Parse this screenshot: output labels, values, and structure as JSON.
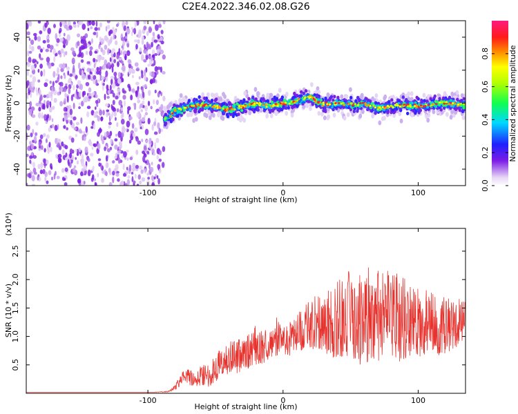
{
  "title": "C2E4.2022.346.02.08.G26",
  "chart_data": [
    {
      "type": "heatmap",
      "xlabel": "Height of straight line (km)",
      "ylabel": "Frequency (Hz)",
      "xlim": [
        -190,
        135
      ],
      "ylim": [
        -50,
        50
      ],
      "xticks": [
        -100,
        0,
        100
      ],
      "yticks": [
        -40,
        -20,
        0,
        20,
        40
      ],
      "colorbar": {
        "label": "Normalized spectral amplitude",
        "range": [
          0,
          1
        ],
        "ticks": [
          "0.0",
          "0.2",
          "0.4",
          "0.6",
          "0.8"
        ]
      },
      "noise_region_x": [
        -190,
        -88
      ],
      "ridge": [
        [
          -88,
          -10
        ],
        [
          -80,
          -5
        ],
        [
          -70,
          -2
        ],
        [
          -60,
          -1
        ],
        [
          -50,
          -2
        ],
        [
          -40,
          -4
        ],
        [
          -30,
          -2
        ],
        [
          -20,
          0
        ],
        [
          -10,
          -2
        ],
        [
          0,
          0
        ],
        [
          10,
          1
        ],
        [
          20,
          4
        ],
        [
          30,
          -1
        ],
        [
          40,
          0
        ],
        [
          50,
          -1
        ],
        [
          60,
          0
        ],
        [
          70,
          -3
        ],
        [
          80,
          -2
        ],
        [
          90,
          -1
        ],
        [
          100,
          -2
        ],
        [
          110,
          -1
        ],
        [
          120,
          0
        ],
        [
          130,
          -1
        ]
      ]
    },
    {
      "type": "line",
      "xlabel": "Height of straight line (km)",
      "ylabel": "SNR (10 * v/v)",
      "yunit": "(x10⁴)",
      "xlim": [
        -190,
        135
      ],
      "ylim": [
        0,
        2.9
      ],
      "xticks": [
        -100,
        0,
        100
      ],
      "yticks": [
        "0.5",
        "1.0",
        "1.5",
        "2.0",
        "2.5"
      ],
      "color": "#e8322d",
      "series": [
        {
          "x": [
            -190,
            -170,
            -150,
            -130,
            -110,
            -95,
            -85,
            -80,
            -75,
            -70,
            -65,
            -60,
            -55,
            -50,
            -45,
            -40,
            -35,
            -30,
            -25,
            -20,
            -15,
            -10,
            -5,
            0,
            5,
            10,
            15,
            20,
            25,
            30,
            35,
            40,
            45,
            50,
            55,
            60,
            65,
            70,
            75,
            80,
            85,
            90,
            95,
            100,
            105,
            110,
            115,
            120,
            125,
            130,
            135
          ],
          "y": [
            0.02,
            0.02,
            0.02,
            0.02,
            0.02,
            0.02,
            0.03,
            0.1,
            0.25,
            0.3,
            0.2,
            0.35,
            0.3,
            0.45,
            0.55,
            0.6,
            0.7,
            0.65,
            0.75,
            0.85,
            0.8,
            0.9,
            1.0,
            0.95,
            0.95,
            1.05,
            1.15,
            1.2,
            1.25,
            1.3,
            1.2,
            1.3,
            1.35,
            1.4,
            1.3,
            1.35,
            1.4,
            1.35,
            1.3,
            1.4,
            1.35,
            1.3,
            1.3,
            1.2,
            1.25,
            1.25,
            1.15,
            1.2,
            1.2,
            1.25,
            1.2
          ],
          "spread": [
            0,
            0,
            0,
            0,
            0,
            0,
            0.01,
            0.05,
            0.12,
            0.15,
            0.12,
            0.2,
            0.2,
            0.25,
            0.3,
            0.3,
            0.35,
            0.3,
            0.3,
            0.35,
            0.3,
            0.3,
            0.35,
            0.3,
            0.3,
            0.35,
            0.4,
            0.45,
            0.5,
            0.55,
            0.6,
            0.7,
            0.75,
            0.8,
            0.8,
            0.85,
            0.85,
            0.85,
            0.8,
            0.85,
            0.8,
            0.75,
            0.7,
            0.65,
            0.6,
            0.55,
            0.5,
            0.5,
            0.45,
            0.45,
            0.4
          ]
        }
      ]
    }
  ]
}
